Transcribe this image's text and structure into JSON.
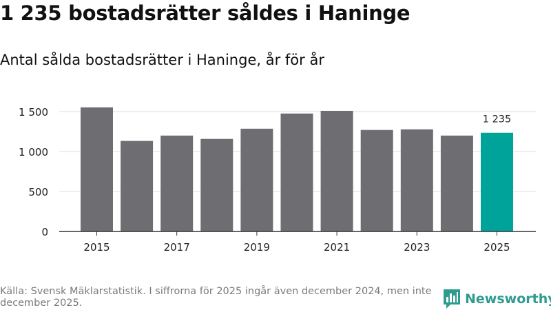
{
  "title": "1 235 bostadsrätter såldes i Haninge",
  "subtitle": "Antal sålda bostadsrätter i Haninge, år för år",
  "chart_data": {
    "type": "bar",
    "categories": [
      "2015",
      "2016",
      "2017",
      "2018",
      "2019",
      "2020",
      "2021",
      "2022",
      "2023",
      "2024",
      "2025"
    ],
    "values": [
      1553,
      1133,
      1200,
      1158,
      1286,
      1476,
      1509,
      1270,
      1278,
      1200,
      1235
    ],
    "x_tick_labels": [
      "2015",
      "2017",
      "2019",
      "2021",
      "2023",
      "2025"
    ],
    "y_ticks": [
      0,
      500,
      1000,
      1500
    ],
    "y_tick_labels": [
      "0",
      "500",
      "1 000",
      "1 500"
    ],
    "ylim": [
      0,
      1500
    ],
    "highlight_index": 10,
    "highlight_label": "1 235",
    "colors": {
      "bar": "#6e6d72",
      "highlight": "#00a39a",
      "grid": "#dddddd",
      "axis": "#333333"
    },
    "xlabel": "",
    "ylabel": ""
  },
  "footer": {
    "source": "Källa: Svensk Mäklarstatistik. I siffrorna för 2025 ingår även december 2024, men inte december 2025.",
    "brand": "Newsworthy",
    "brand_icon": "bar-chart-icon",
    "brand_color": "#2e9b8f"
  }
}
